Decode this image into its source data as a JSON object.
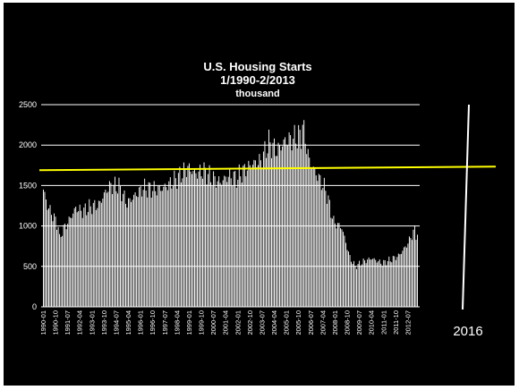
{
  "chart_data": {
    "type": "bar",
    "title": "U.S. Housing Starts",
    "subtitle": "1/1990-2/2013",
    "unit_label": "thousand",
    "ylim": [
      0,
      2500
    ],
    "yticks": [
      "0",
      "500",
      "1000",
      "1500",
      "2000",
      "2500"
    ],
    "grid": "horizontal",
    "colors": {
      "background": "#000000",
      "bars": "#ffffff",
      "grid": "#ffffff",
      "level_line": "#ffff00",
      "trend_line": "#33dd33",
      "marker": "#ffffff"
    },
    "x_tick_labels": [
      "1990-01",
      "1990-10",
      "1991-07",
      "1992-04",
      "1993-01",
      "1993-10",
      "1994-07",
      "1995-04",
      "1996-01",
      "1996-10",
      "1997-07",
      "1998-04",
      "1999-01",
      "1999-10",
      "2000-07",
      "2001-04",
      "2002-01",
      "2002-10",
      "2003-07",
      "2004-04",
      "2005-01",
      "2005-10",
      "2006-07",
      "2007-04",
      "2008-01",
      "2008-10",
      "2009-07",
      "2010-04",
      "2011-01",
      "2011-10",
      "2012-07"
    ],
    "anchors": [
      [
        "1990-01",
        1450
      ],
      [
        "1990-04",
        1250
      ],
      [
        "1990-08",
        1130
      ],
      [
        "1990-12",
        1000
      ],
      [
        "1991-01",
        830
      ],
      [
        "1991-03",
        940
      ],
      [
        "1991-07",
        1040
      ],
      [
        "1992-01",
        1220
      ],
      [
        "1992-06",
        1180
      ],
      [
        "1992-12",
        1240
      ],
      [
        "1993-06",
        1260
      ],
      [
        "1993-12",
        1450
      ],
      [
        "1994-03",
        1500
      ],
      [
        "1994-09",
        1490
      ],
      [
        "1995-03",
        1280
      ],
      [
        "1995-09",
        1380
      ],
      [
        "1996-03",
        1470
      ],
      [
        "1996-12",
        1450
      ],
      [
        "1997-06",
        1470
      ],
      [
        "1997-12",
        1540
      ],
      [
        "1998-06",
        1620
      ],
      [
        "1998-12",
        1720
      ],
      [
        "1999-06",
        1650
      ],
      [
        "1999-12",
        1680
      ],
      [
        "2000-06",
        1590
      ],
      [
        "2000-12",
        1540
      ],
      [
        "2001-06",
        1620
      ],
      [
        "2001-12",
        1590
      ],
      [
        "2002-06",
        1690
      ],
      [
        "2002-12",
        1770
      ],
      [
        "2003-06",
        1800
      ],
      [
        "2003-12",
        2030
      ],
      [
        "2004-06",
        1930
      ],
      [
        "2004-12",
        2050
      ],
      [
        "2005-06",
        2080
      ],
      [
        "2005-12",
        2120
      ],
      [
        "2006-01",
        2250
      ],
      [
        "2006-06",
        1800
      ],
      [
        "2006-12",
        1620
      ],
      [
        "2007-06",
        1450
      ],
      [
        "2007-12",
        1050
      ],
      [
        "2008-06",
        980
      ],
      [
        "2008-12",
        610
      ],
      [
        "2009-04",
        500
      ],
      [
        "2009-10",
        560
      ],
      [
        "2010-04",
        600
      ],
      [
        "2010-12",
        540
      ],
      [
        "2011-06",
        580
      ],
      [
        "2011-12",
        630
      ],
      [
        "2012-06",
        760
      ],
      [
        "2012-12",
        950
      ],
      [
        "2013-01",
        890
      ],
      [
        "2013-02",
        920
      ]
    ],
    "annotations": {
      "level_line": {
        "value": 1690,
        "description": "horizontal reference line"
      },
      "trend_line": {
        "from": [
          "2009-04",
          0
        ],
        "to": [
          "2016-12",
          2150
        ]
      },
      "marker": {
        "label": "2016"
      }
    }
  }
}
